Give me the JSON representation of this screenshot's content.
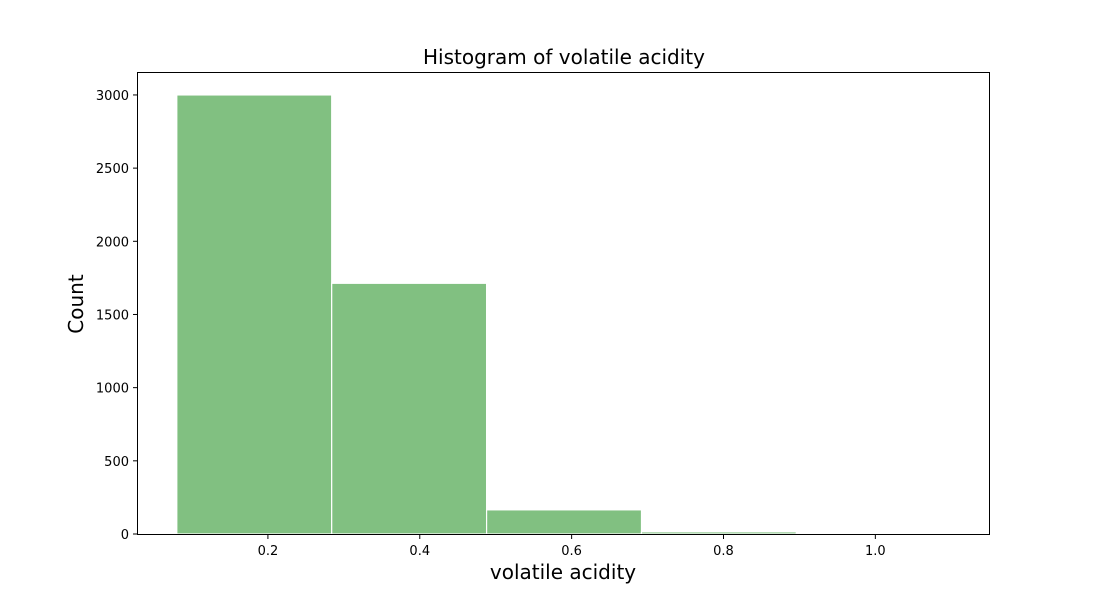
{
  "chart_data": {
    "type": "bar",
    "title": "Histogram of volatile acidity",
    "xlabel": "volatile acidity",
    "ylabel": "Count",
    "bins": [
      {
        "start": 0.08,
        "end": 0.284,
        "count": 3000
      },
      {
        "start": 0.284,
        "end": 0.488,
        "count": 1713
      },
      {
        "start": 0.488,
        "end": 0.692,
        "count": 165
      },
      {
        "start": 0.692,
        "end": 0.896,
        "count": 15
      },
      {
        "start": 0.896,
        "end": 1.1,
        "count": 5
      }
    ],
    "xlim": [
      0.0289,
      1.151
    ],
    "ylim": [
      0,
      3150
    ],
    "xticks": [
      0.2,
      0.4,
      0.6,
      0.8,
      1.0
    ],
    "xtick_labels": [
      "0.2",
      "0.4",
      "0.6",
      "0.8",
      "1.0"
    ],
    "yticks": [
      0,
      500,
      1000,
      1500,
      2000,
      2500,
      3000
    ],
    "ytick_labels": [
      "0",
      "500",
      "1000",
      "1500",
      "2000",
      "2500",
      "3000"
    ],
    "bar_color": "#81c081",
    "edge_color": "#ffffff",
    "grid": false
  }
}
